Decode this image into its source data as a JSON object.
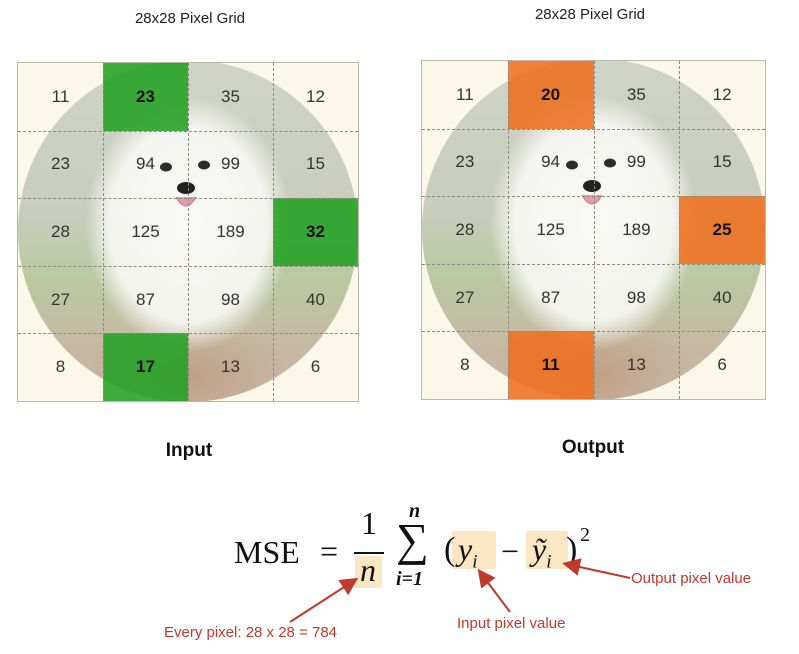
{
  "left_panel": {
    "title": "28x28 Pixel Grid",
    "label": "Input",
    "highlight_color": "#22a022",
    "rows": [
      [
        "11",
        "23",
        "35",
        "12"
      ],
      [
        "23",
        "94",
        "99",
        "15"
      ],
      [
        "28",
        "125",
        "189",
        "32"
      ],
      [
        "27",
        "87",
        "98",
        "40"
      ],
      [
        "8",
        "17",
        "13",
        "6"
      ]
    ],
    "highlighted": [
      [
        0,
        1
      ],
      [
        2,
        3
      ],
      [
        4,
        1
      ]
    ]
  },
  "right_panel": {
    "title": "28x28 Pixel Grid",
    "label": "Output",
    "highlight_color": "#ee701e",
    "rows": [
      [
        "11",
        "20",
        "35",
        "12"
      ],
      [
        "23",
        "94",
        "99",
        "15"
      ],
      [
        "28",
        "125",
        "189",
        "25"
      ],
      [
        "27",
        "87",
        "98",
        "40"
      ],
      [
        "8",
        "11",
        "13",
        "6"
      ]
    ],
    "highlighted": [
      [
        0,
        1
      ],
      [
        2,
        3
      ],
      [
        4,
        1
      ]
    ]
  },
  "formula": {
    "lhs": "MSE",
    "equals": "=",
    "numerator": "1",
    "denominator": "n",
    "sum_symbol": "∑",
    "sum_upper": "n",
    "sum_lower": "i=1",
    "open_paren": "(",
    "term_a_base": "y",
    "term_a_sub": "i",
    "minus": "−",
    "term_b_base": "ỹ",
    "term_b_sub": "i",
    "close_paren": ")",
    "exponent": "2"
  },
  "annotations": {
    "output_pixel": "Output pixel value",
    "input_pixel": "Input pixel value",
    "every_pixel": "Every pixel: 28 x 28 = 784",
    "arrow_color": "#c0392b",
    "highlight_box_color": "#fbe7c2"
  }
}
